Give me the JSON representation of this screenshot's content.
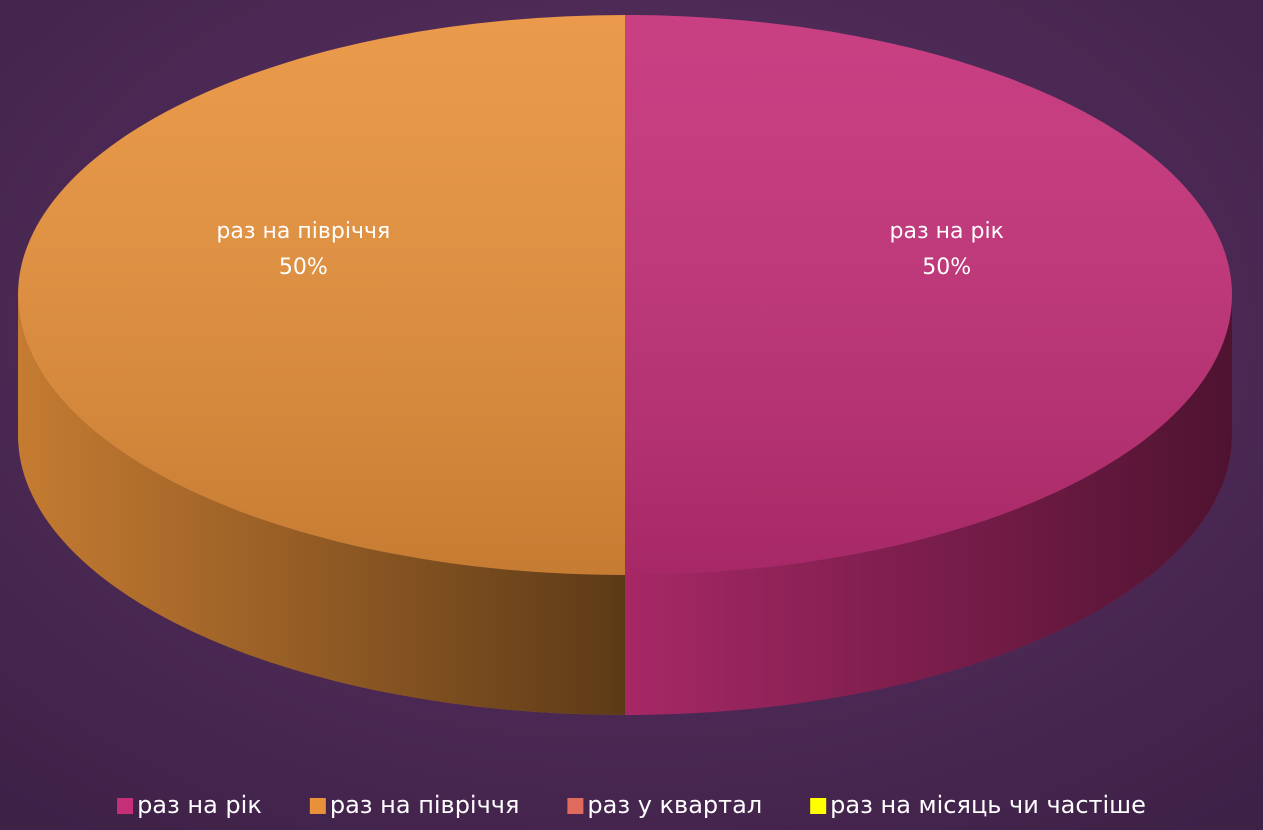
{
  "chart_data": {
    "type": "pie",
    "categories": [
      "раз на рік",
      "раз на півріччя",
      "раз у квартал",
      "раз на місяць чи частіше"
    ],
    "values": [
      50,
      50,
      0,
      0
    ],
    "value_labels": [
      "50%",
      "50%",
      null,
      null
    ],
    "colors": [
      "#c42f78",
      "#e8913a",
      "#e06a5c",
      "#ffff00"
    ],
    "legend": "bottom"
  }
}
